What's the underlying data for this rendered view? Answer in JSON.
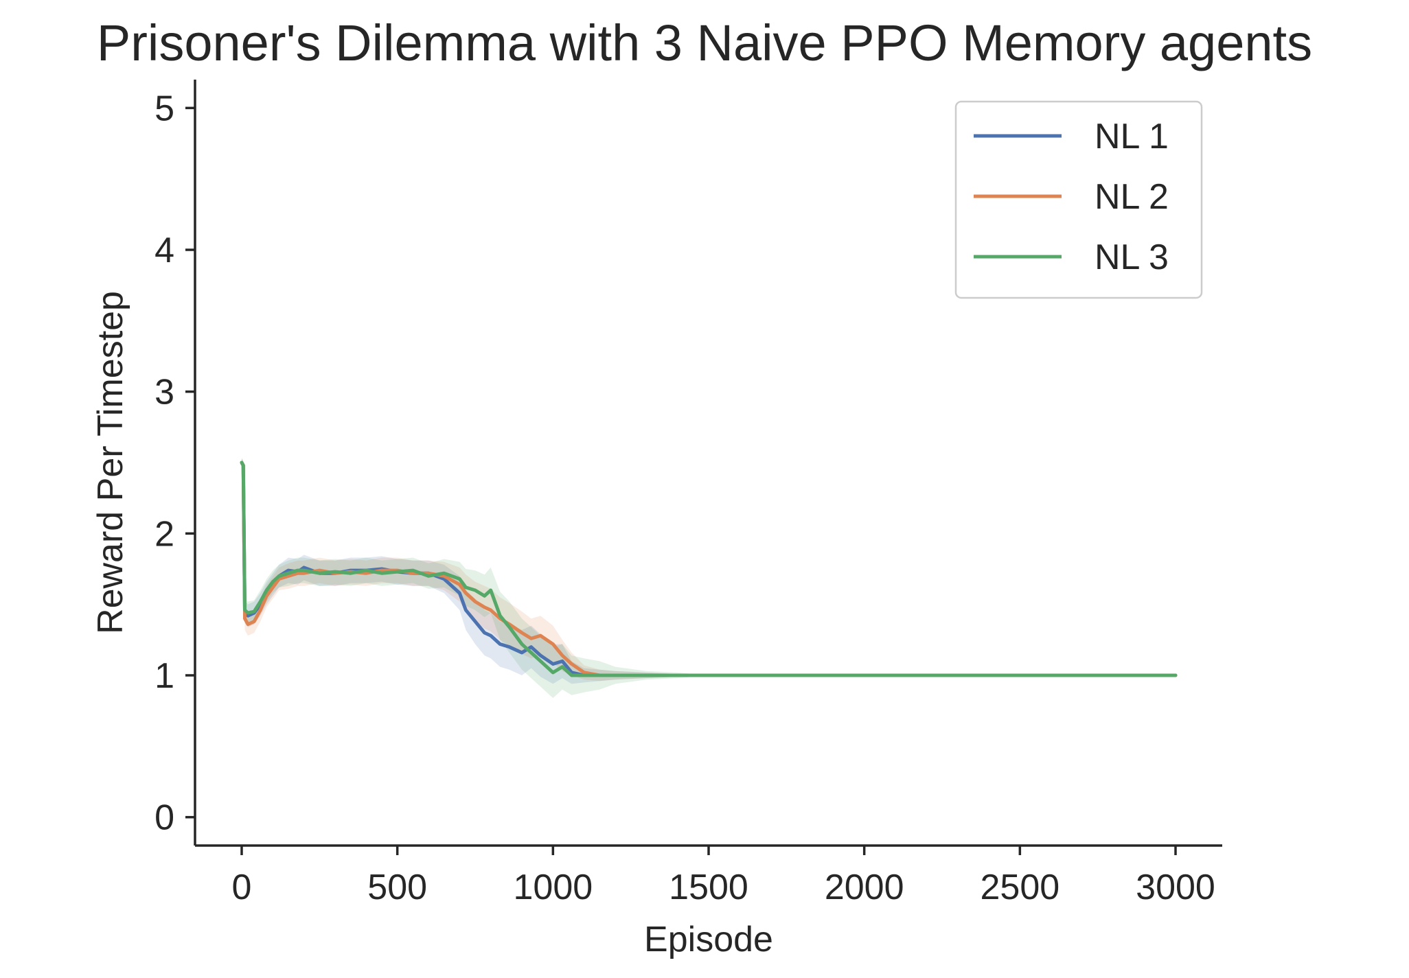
{
  "chart_data": {
    "type": "line",
    "title": "Prisoner's Dilemma with 3 Naive PPO Memory agents",
    "xlabel": "Episode",
    "ylabel": "Reward Per Timestep",
    "xlim": [
      -150,
      3150
    ],
    "ylim": [
      -0.2,
      5.2
    ],
    "xticks": [
      0,
      500,
      1000,
      1500,
      2000,
      2500,
      3000
    ],
    "yticks": [
      0,
      1,
      2,
      3,
      4,
      5
    ],
    "grid": false,
    "legend_position": "top-right",
    "x": [
      0,
      5,
      10,
      20,
      40,
      60,
      80,
      100,
      120,
      150,
      180,
      200,
      250,
      300,
      350,
      400,
      450,
      500,
      550,
      600,
      650,
      700,
      720,
      750,
      780,
      800,
      830,
      860,
      900,
      930,
      960,
      1000,
      1030,
      1060,
      1100,
      1150,
      1200,
      1300,
      1400,
      1500,
      1750,
      2000,
      2250,
      2500,
      2750,
      3000
    ],
    "series": [
      {
        "name": "NL 1",
        "color": "#4c72b0",
        "values": [
          2.5,
          2.48,
          1.45,
          1.42,
          1.44,
          1.5,
          1.58,
          1.64,
          1.7,
          1.74,
          1.73,
          1.76,
          1.72,
          1.72,
          1.74,
          1.74,
          1.75,
          1.73,
          1.72,
          1.72,
          1.68,
          1.58,
          1.46,
          1.38,
          1.3,
          1.28,
          1.22,
          1.2,
          1.16,
          1.2,
          1.14,
          1.08,
          1.1,
          1.02,
          1.0,
          1.0,
          1.0,
          1.0,
          1.0,
          1.0,
          1.0,
          1.0,
          1.0,
          1.0,
          1.0,
          1.0
        ],
        "band": [
          0.03,
          0.03,
          0.08,
          0.08,
          0.08,
          0.08,
          0.08,
          0.08,
          0.08,
          0.09,
          0.09,
          0.09,
          0.09,
          0.09,
          0.09,
          0.09,
          0.09,
          0.09,
          0.09,
          0.09,
          0.1,
          0.12,
          0.14,
          0.16,
          0.16,
          0.16,
          0.16,
          0.16,
          0.16,
          0.15,
          0.15,
          0.14,
          0.12,
          0.08,
          0.05,
          0.04,
          0.03,
          0.02,
          0.01,
          0.0,
          0.0,
          0.0,
          0.0,
          0.0,
          0.0,
          0.0
        ]
      },
      {
        "name": "NL 2",
        "color": "#dd8452",
        "values": [
          2.5,
          2.48,
          1.4,
          1.36,
          1.38,
          1.46,
          1.56,
          1.62,
          1.68,
          1.7,
          1.72,
          1.72,
          1.74,
          1.72,
          1.73,
          1.72,
          1.74,
          1.74,
          1.72,
          1.72,
          1.7,
          1.64,
          1.58,
          1.52,
          1.48,
          1.46,
          1.4,
          1.36,
          1.3,
          1.26,
          1.28,
          1.22,
          1.14,
          1.08,
          1.02,
          1.0,
          1.0,
          1.0,
          1.0,
          1.0,
          1.0,
          1.0,
          1.0,
          1.0,
          1.0,
          1.0
        ],
        "band": [
          0.03,
          0.03,
          0.08,
          0.08,
          0.08,
          0.08,
          0.08,
          0.08,
          0.08,
          0.09,
          0.09,
          0.09,
          0.09,
          0.09,
          0.09,
          0.09,
          0.09,
          0.09,
          0.09,
          0.09,
          0.1,
          0.12,
          0.13,
          0.14,
          0.15,
          0.15,
          0.15,
          0.15,
          0.15,
          0.14,
          0.14,
          0.13,
          0.11,
          0.08,
          0.05,
          0.04,
          0.03,
          0.02,
          0.01,
          0.0,
          0.0,
          0.0,
          0.0,
          0.0,
          0.0,
          0.0
        ]
      },
      {
        "name": "NL 3",
        "color": "#55a868",
        "values": [
          2.5,
          2.48,
          1.46,
          1.44,
          1.45,
          1.52,
          1.6,
          1.66,
          1.7,
          1.72,
          1.74,
          1.74,
          1.72,
          1.73,
          1.72,
          1.74,
          1.72,
          1.73,
          1.74,
          1.7,
          1.72,
          1.68,
          1.62,
          1.6,
          1.56,
          1.6,
          1.42,
          1.34,
          1.22,
          1.16,
          1.1,
          1.02,
          1.06,
          1.0,
          1.0,
          1.0,
          1.0,
          1.0,
          1.0,
          1.0,
          1.0,
          1.0,
          1.0,
          1.0,
          1.0,
          1.0
        ],
        "band": [
          0.03,
          0.03,
          0.08,
          0.08,
          0.08,
          0.08,
          0.08,
          0.08,
          0.08,
          0.09,
          0.09,
          0.09,
          0.09,
          0.09,
          0.09,
          0.09,
          0.09,
          0.09,
          0.09,
          0.09,
          0.1,
          0.12,
          0.13,
          0.14,
          0.15,
          0.16,
          0.17,
          0.18,
          0.18,
          0.18,
          0.18,
          0.18,
          0.16,
          0.14,
          0.12,
          0.1,
          0.06,
          0.03,
          0.02,
          0.0,
          0.0,
          0.0,
          0.0,
          0.0,
          0.0,
          0.0
        ]
      }
    ]
  }
}
